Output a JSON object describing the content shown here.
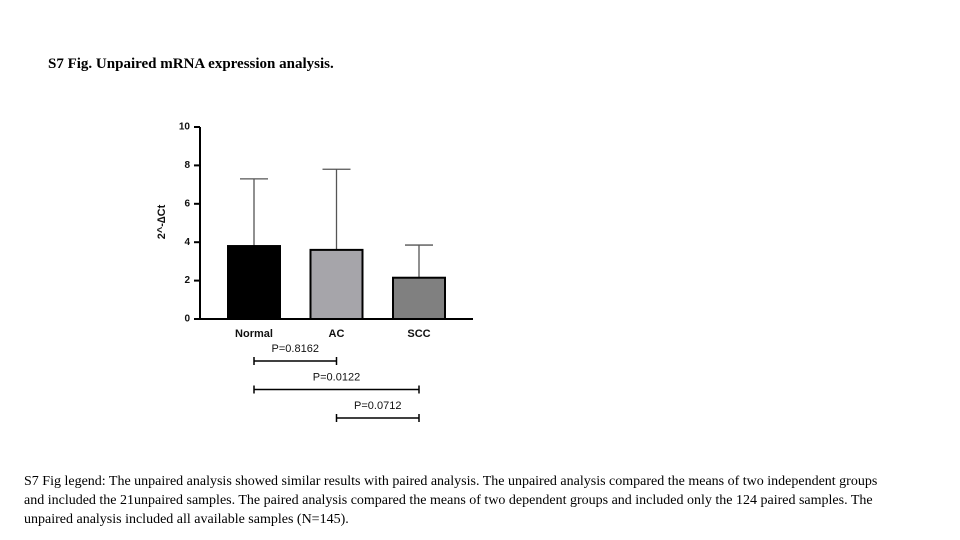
{
  "heading": "S7 Fig. Unpaired mRNA expression analysis.",
  "caption": "S7 Fig legend: The unpaired analysis showed similar results with paired analysis. The unpaired analysis compared the means of two independent groups and included the 21unpaired samples. The paired analysis compared the means of two dependent groups and included only the 124 paired samples. The unpaired analysis included all available samples (N=145).",
  "chart_data": {
    "type": "bar",
    "y_label": "2^-∆Ct",
    "categories": [
      "Normal",
      "AC",
      "SCC"
    ],
    "values": [
      3.8,
      3.6,
      2.15
    ],
    "errors": [
      3.5,
      4.2,
      1.7
    ],
    "colors": [
      "#000000",
      "#a6a5aa",
      "#808080"
    ],
    "ylim": [
      0,
      10
    ],
    "yticks": [
      0,
      2,
      4,
      6,
      8,
      10
    ],
    "comparisons": [
      {
        "label": "P=0.8162",
        "between": [
          0,
          1
        ]
      },
      {
        "label": "P=0.0122",
        "between": [
          0,
          2
        ]
      },
      {
        "label": "P=0.0712",
        "between": [
          1,
          2
        ]
      }
    ]
  }
}
